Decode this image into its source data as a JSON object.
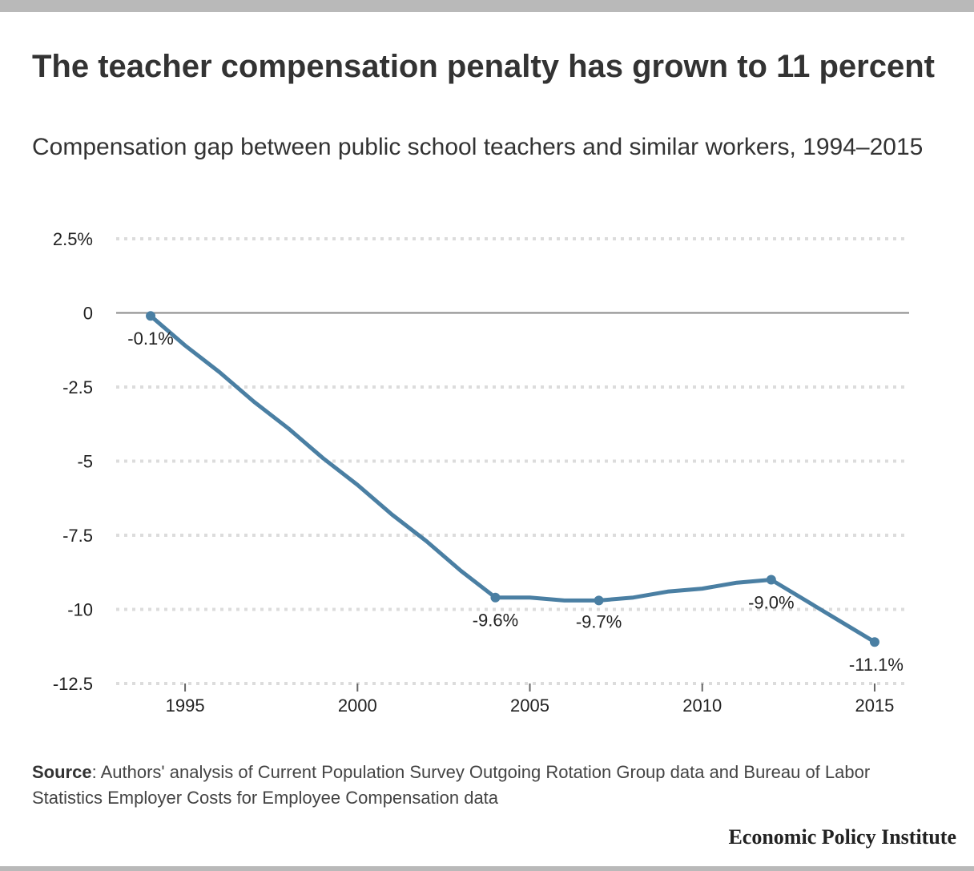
{
  "title": "The teacher compensation penalty has grown to 11 percent",
  "subtitle": "Compensation gap between public school teachers and similar workers, 1994–2015",
  "source": {
    "label": "Source",
    "text": ": Authors' analysis of Current Population Survey Outgoing Rotation Group data and Bureau of Labor Statistics Employer Costs for Employee Compensation data"
  },
  "brand": "Economic Policy Institute",
  "colors": {
    "line": "#4a7fa3",
    "grid": "#dcdcdc",
    "zero": "#8a8a8a"
  },
  "chart_data": {
    "type": "line",
    "x": [
      1994,
      1995,
      1996,
      1997,
      1998,
      1999,
      2000,
      2001,
      2002,
      2003,
      2004,
      2005,
      2006,
      2007,
      2008,
      2009,
      2010,
      2011,
      2012,
      2013,
      2014,
      2015
    ],
    "series": [
      {
        "values": [
          -0.1,
          -1.1,
          -2.0,
          -3.0,
          -3.9,
          -4.9,
          -5.8,
          -6.8,
          -7.7,
          -8.7,
          -9.6,
          -9.6,
          -9.7,
          -9.7,
          -9.6,
          -9.4,
          -9.3,
          -9.1,
          -9.0,
          -9.7,
          -10.4,
          -11.1
        ]
      }
    ],
    "annotations": [
      {
        "x": 1994,
        "y": -0.1,
        "label": "-0.1%"
      },
      {
        "x": 2004,
        "y": -9.6,
        "label": "-9.6%"
      },
      {
        "x": 2007,
        "y": -9.7,
        "label": "-9.7%"
      },
      {
        "x": 2012,
        "y": -9.0,
        "label": "-9.0%"
      },
      {
        "x": 2015,
        "y": -11.1,
        "label": "-11.1%"
      }
    ],
    "yticks": [
      {
        "value": 2.5,
        "label": "2.5%"
      },
      {
        "value": 0,
        "label": "0"
      },
      {
        "value": -2.5,
        "label": "-2.5"
      },
      {
        "value": -5,
        "label": "-5"
      },
      {
        "value": -7.5,
        "label": "-7.5"
      },
      {
        "value": -10,
        "label": "-10"
      },
      {
        "value": -12.5,
        "label": "-12.5"
      }
    ],
    "xticks": [
      {
        "value": 1995,
        "label": "1995"
      },
      {
        "value": 2000,
        "label": "2000"
      },
      {
        "value": 2005,
        "label": "2005"
      },
      {
        "value": 2010,
        "label": "2010"
      },
      {
        "value": 2015,
        "label": "2015"
      }
    ],
    "ylim": [
      -12.5,
      2.5
    ],
    "xlim": [
      1993,
      2016
    ],
    "grid": true,
    "legend": "none"
  }
}
